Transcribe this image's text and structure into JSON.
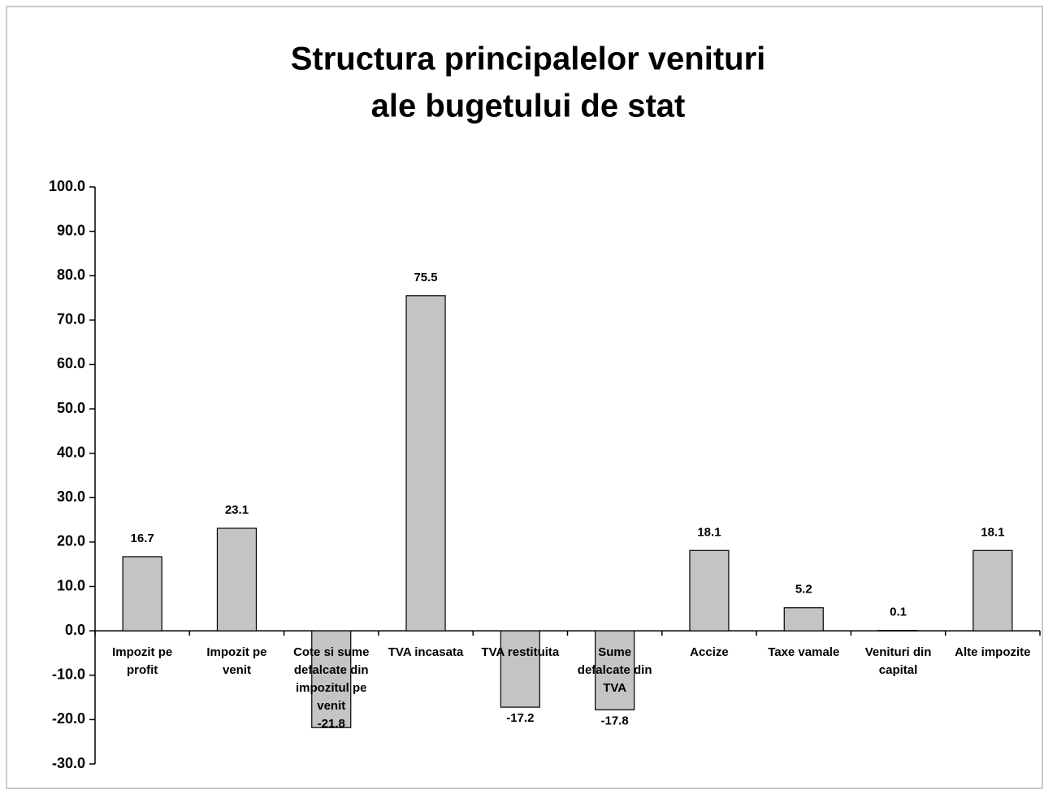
{
  "chart_data": {
    "type": "bar",
    "title": [
      "Structura principalelor venituri",
      "ale bugetului de stat"
    ],
    "categories": [
      "Impozit pe profit",
      "Impozit pe venit",
      "Cote si sume defalcate din impozitul pe venit",
      "TVA incasata",
      "TVA restituita",
      "Sume defalcate din TVA",
      "Accize",
      "Taxe vamale",
      "Venituri din capital",
      "Alte impozite"
    ],
    "values": [
      16.7,
      23.1,
      -21.8,
      75.5,
      -17.2,
      -17.8,
      18.1,
      5.2,
      0.1,
      18.1
    ],
    "color": "#c4c4c4",
    "ylim": [
      -30,
      100
    ],
    "yticks": [
      {
        "value": -30,
        "label": "-30.0"
      },
      {
        "value": -20,
        "label": "-20.0"
      },
      {
        "value": -10,
        "label": "-10.0"
      },
      {
        "value": 0,
        "label": "0.0"
      },
      {
        "value": 10,
        "label": "10.0"
      },
      {
        "value": 20,
        "label": "20.0"
      },
      {
        "value": 30,
        "label": "30.0"
      },
      {
        "value": 40,
        "label": "40.0"
      },
      {
        "value": 50,
        "label": "50.0"
      },
      {
        "value": 60,
        "label": "60.0"
      },
      {
        "value": 70,
        "label": "70.0"
      },
      {
        "value": 80,
        "label": "80.0"
      },
      {
        "value": 90,
        "label": "90.0"
      },
      {
        "value": 100,
        "label": "100.0"
      }
    ],
    "grid": false
  }
}
